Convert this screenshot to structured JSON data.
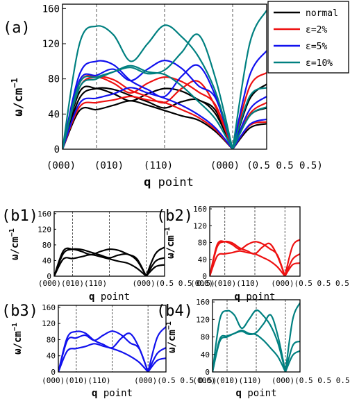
{
  "chart_data": [
    {
      "panel": "(a)",
      "type": "line",
      "xlabel": "q point",
      "ylabel": "ω/cm⁻¹",
      "ylim": [
        0,
        165
      ],
      "yticks": [
        0,
        40,
        80,
        120,
        160
      ],
      "ytick_labels": [
        "0",
        "40",
        "80",
        "120",
        "160"
      ],
      "x_tick_labels": [
        "(000)",
        "(010)",
        "(110)",
        "(000)",
        "(0.5 0.5 0.5)"
      ],
      "high_symmetry_dashed": true,
      "legend": {
        "position": "top-right outside",
        "entries": [
          "normal",
          "ε=2%",
          "ε=5%",
          "ε=10%"
        ]
      },
      "series": [
        {
          "name": "normal",
          "color": "#000000",
          "branches": [
            [
              [
                0,
                0
              ],
              [
                0.5,
                44
              ],
              [
                1,
                45
              ],
              [
                1.5,
                50
              ],
              [
                2,
                55
              ],
              [
                2.5,
                50
              ],
              [
                3,
                44
              ],
              [
                3.5,
                38
              ],
              [
                4,
                33
              ],
              [
                4.5,
                20
              ],
              [
                5,
                0
              ],
              [
                5.5,
                24
              ],
              [
                6,
                29
              ]
            ],
            [
              [
                0,
                0
              ],
              [
                0.5,
                58
              ],
              [
                1,
                69
              ],
              [
                1.5,
                68
              ],
              [
                2,
                61
              ],
              [
                2.5,
                54
              ],
              [
                3,
                47
              ],
              [
                3.5,
                54
              ],
              [
                4,
                56
              ],
              [
                4.5,
                40
              ],
              [
                5,
                0
              ],
              [
                5.5,
                38
              ],
              [
                6,
                47
              ]
            ],
            [
              [
                0,
                0
              ],
              [
                0.5,
                65
              ],
              [
                1,
                69
              ],
              [
                1.5,
                63
              ],
              [
                2,
                55
              ],
              [
                2.5,
                63
              ],
              [
                3,
                69
              ],
              [
                3.5,
                66
              ],
              [
                4,
                56
              ],
              [
                4.5,
                44
              ],
              [
                5,
                0
              ],
              [
                5.5,
                57
              ],
              [
                6,
                74
              ]
            ]
          ]
        },
        {
          "name": "ε=2%",
          "color": "#ee1111",
          "branches": [
            [
              [
                0,
                0
              ],
              [
                0.5,
                48
              ],
              [
                1,
                53
              ],
              [
                1.5,
                56
              ],
              [
                2,
                60
              ],
              [
                2.5,
                56
              ],
              [
                3,
                53
              ],
              [
                3.5,
                45
              ],
              [
                4,
                36
              ],
              [
                4.5,
                22
              ],
              [
                5,
                0
              ],
              [
                5.5,
                27
              ],
              [
                6,
                31
              ]
            ],
            [
              [
                0,
                0
              ],
              [
                0.5,
                70
              ],
              [
                1,
                82
              ],
              [
                1.5,
                79
              ],
              [
                2,
                67
              ],
              [
                2.5,
                60
              ],
              [
                3,
                53
              ],
              [
                3.5,
                69
              ],
              [
                4,
                77
              ],
              [
                4.5,
                48
              ],
              [
                5,
                0
              ],
              [
                5.5,
                40
              ],
              [
                6,
                53
              ]
            ],
            [
              [
                0,
                0
              ],
              [
                0.5,
                75
              ],
              [
                1,
                82
              ],
              [
                1.5,
                75
              ],
              [
                2,
                64
              ],
              [
                2.5,
                75
              ],
              [
                3,
                82
              ],
              [
                3.5,
                77
              ],
              [
                4,
                65
              ],
              [
                4.5,
                50
              ],
              [
                5,
                0
              ],
              [
                5.5,
                71
              ],
              [
                6,
                87
              ]
            ]
          ]
        },
        {
          "name": "ε=5%",
          "color": "#1111ee",
          "branches": [
            [
              [
                0,
                0
              ],
              [
                0.5,
                52
              ],
              [
                1,
                58
              ],
              [
                1.5,
                63
              ],
              [
                2,
                70
              ],
              [
                2.5,
                64
              ],
              [
                3,
                58
              ],
              [
                3.5,
                50
              ],
              [
                4,
                39
              ],
              [
                4.5,
                24
              ],
              [
                5,
                0
              ],
              [
                5.5,
                28
              ],
              [
                6,
                34
              ]
            ],
            [
              [
                0,
                0
              ],
              [
                0.5,
                85
              ],
              [
                1,
                100
              ],
              [
                1.5,
                96
              ],
              [
                2,
                78
              ],
              [
                2.5,
                68
              ],
              [
                3,
                60
              ],
              [
                3.5,
                83
              ],
              [
                4,
                95
              ],
              [
                4.5,
                60
              ],
              [
                5,
                0
              ],
              [
                5.5,
                45
              ],
              [
                6,
                60
              ]
            ],
            [
              [
                0,
                0
              ],
              [
                0.5,
                78
              ],
              [
                1,
                84
              ],
              [
                1.5,
                91
              ],
              [
                2,
                78
              ],
              [
                2.5,
                91
              ],
              [
                3,
                101
              ],
              [
                3.5,
                92
              ],
              [
                4,
                72
              ],
              [
                4.5,
                58
              ],
              [
                5,
                0
              ],
              [
                5.5,
                84
              ],
              [
                6,
                112
              ]
            ]
          ]
        },
        {
          "name": "ε=10%",
          "color": "#008080",
          "branches": [
            [
              [
                0,
                0
              ],
              [
                0.5,
                70
              ],
              [
                1,
                80
              ],
              [
                1.5,
                88
              ],
              [
                2,
                95
              ],
              [
                2.5,
                88
              ],
              [
                3,
                85
              ],
              [
                3.5,
                72
              ],
              [
                4,
                54
              ],
              [
                4.5,
                34
              ],
              [
                5,
                0
              ],
              [
                5.5,
                38
              ],
              [
                6,
                48
              ]
            ],
            [
              [
                0,
                0
              ],
              [
                0.5,
                120
              ],
              [
                1,
                140
              ],
              [
                1.5,
                130
              ],
              [
                2,
                100
              ],
              [
                2.5,
                120
              ],
              [
                3,
                141
              ],
              [
                3.5,
                128
              ],
              [
                4,
                105
              ],
              [
                4.5,
                65
              ],
              [
                5,
                0
              ],
              [
                5.5,
                60
              ],
              [
                6,
                70
              ]
            ],
            [
              [
                0,
                0
              ],
              [
                0.5,
                75
              ],
              [
                1,
                82
              ],
              [
                1.5,
                88
              ],
              [
                2,
                93
              ],
              [
                2.5,
                86
              ],
              [
                3,
                90
              ],
              [
                3.5,
                110
              ],
              [
                4,
                130
              ],
              [
                4.5,
                80
              ],
              [
                5,
                0
              ],
              [
                5.5,
                120
              ],
              [
                6,
                158
              ]
            ]
          ]
        }
      ]
    },
    {
      "panel": "(b1)",
      "type": "line",
      "series_ref": "normal",
      "xlabel": "q point",
      "ylabel": "ω/cm⁻¹",
      "yticks": [
        0,
        40,
        80,
        120,
        160
      ],
      "x_tick_labels": [
        "(000)",
        "(010)",
        "(110)",
        "(000)",
        "(0.5 0.5 0.5)"
      ]
    },
    {
      "panel": "(b2)",
      "type": "line",
      "series_ref": "ε=2%",
      "xlabel": "q point",
      "ylabel": "ω/cm⁻¹",
      "yticks": [
        0,
        40,
        80,
        120,
        160
      ],
      "x_tick_labels": [
        "(000)",
        "(010)",
        "(110)",
        "(000)",
        "(0.5 0.5 0.5)"
      ]
    },
    {
      "panel": "(b3)",
      "type": "line",
      "series_ref": "ε=5%",
      "xlabel": "q point",
      "ylabel": "ω/cm⁻¹",
      "yticks": [
        0,
        40,
        80,
        120,
        160
      ],
      "x_tick_labels": [
        "(000)",
        "(010)",
        "(110)",
        "(000)",
        "(0.5 0.5 0.5)"
      ]
    },
    {
      "panel": "(b4)",
      "type": "line",
      "series_ref": "ε=10%",
      "xlabel": "q point",
      "ylabel": "ω/cm⁻¹",
      "yticks": [
        0,
        40,
        80,
        120,
        160
      ],
      "x_tick_labels": [
        "(000)",
        "(010)",
        "(110)",
        "(000)",
        "(0.5 0.5 0.5)"
      ]
    }
  ],
  "texts": {
    "a_label": "(a)",
    "b1_label": "(b1)",
    "b2_label": "(b2)",
    "b3_label": "(b3)",
    "b4_label": "(b4)",
    "ylabel_main": "ω/cm",
    "ylabel_exp": "−1",
    "xlabel_bold": "q",
    "xlabel_rest": " point",
    "small_xticks": "(000)(010)(110)",
    "small_xticks_end": "(000)(0.5 0.5 0.5)"
  }
}
